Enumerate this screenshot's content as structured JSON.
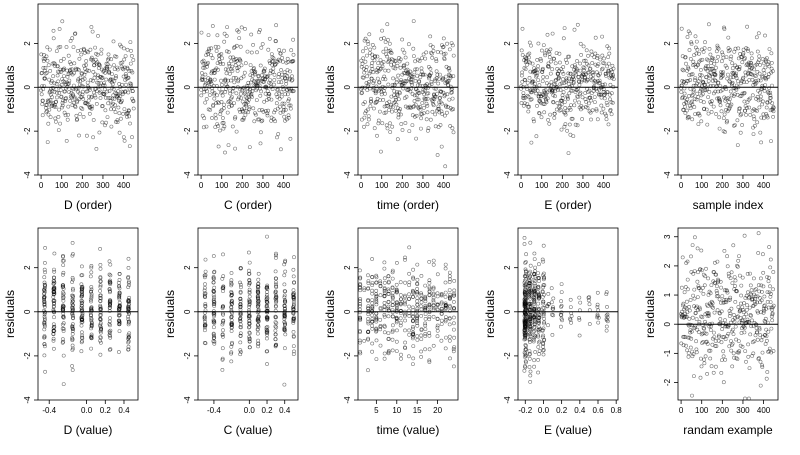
{
  "chart_data": [
    {
      "type": "scatter",
      "xlabel": "D (order)",
      "ylabel": "residuals",
      "xticks": [
        0,
        100,
        200,
        300,
        400
      ],
      "xlim": [
        -15,
        470
      ],
      "yticks": [
        -4,
        -2,
        0,
        2
      ],
      "ylim": [
        -4,
        3.8
      ],
      "hline": 0,
      "distribution": "order",
      "n": 450,
      "seed": 11
    },
    {
      "type": "scatter",
      "xlabel": "C (order)",
      "ylabel": "residuals",
      "xticks": [
        0,
        100,
        200,
        300,
        400
      ],
      "xlim": [
        -15,
        470
      ],
      "yticks": [
        -4,
        -2,
        0,
        2
      ],
      "ylim": [
        -4,
        3.8
      ],
      "hline": 0,
      "distribution": "order",
      "n": 450,
      "seed": 22
    },
    {
      "type": "scatter",
      "xlabel": "time (order)",
      "ylabel": "residuals",
      "xticks": [
        0,
        100,
        200,
        300,
        400
      ],
      "xlim": [
        -15,
        470
      ],
      "yticks": [
        -4,
        -2,
        0,
        2
      ],
      "ylim": [
        -4,
        3.8
      ],
      "hline": 0,
      "distribution": "order",
      "n": 450,
      "seed": 33
    },
    {
      "type": "scatter",
      "xlabel": "E (order)",
      "ylabel": "residuals",
      "xticks": [
        0,
        100,
        200,
        300,
        400
      ],
      "xlim": [
        -15,
        470
      ],
      "yticks": [
        -4,
        -2,
        0,
        2
      ],
      "ylim": [
        -4,
        3.8
      ],
      "hline": 0,
      "distribution": "order",
      "n": 450,
      "seed": 44
    },
    {
      "type": "scatter",
      "xlabel": "sample index",
      "ylabel": "residuals",
      "xticks": [
        0,
        100,
        200,
        300,
        400
      ],
      "xlim": [
        -15,
        470
      ],
      "yticks": [
        -4,
        -2,
        0,
        2
      ],
      "ylim": [
        -4,
        3.8
      ],
      "hline": 0,
      "distribution": "order",
      "n": 450,
      "seed": 55
    },
    {
      "type": "scatter",
      "xlabel": "D (value)",
      "ylabel": "residuals",
      "xticks": [
        -0.4,
        0.0,
        0.2,
        0.4
      ],
      "xtick_labels": [
        "-0.4",
        "0.0",
        "0.2",
        "0.4"
      ],
      "xlim": [
        -0.52,
        0.55
      ],
      "yticks": [
        -4,
        -2,
        0,
        2
      ],
      "ylim": [
        -4,
        3.8
      ],
      "hline": 0,
      "distribution": "levels",
      "levels": [
        -0.45,
        -0.35,
        -0.25,
        -0.15,
        -0.05,
        0.05,
        0.15,
        0.25,
        0.35,
        0.45
      ],
      "n": 450,
      "seed": 66
    },
    {
      "type": "scatter",
      "xlabel": "C (value)",
      "ylabel": "residuals",
      "xticks": [
        -0.4,
        0.0,
        0.2,
        0.4
      ],
      "xtick_labels": [
        "-0.4",
        "0.0",
        "0.2",
        "0.4"
      ],
      "xlim": [
        -0.58,
        0.55
      ],
      "yticks": [
        -4,
        -2,
        0,
        2
      ],
      "ylim": [
        -4,
        3.8
      ],
      "hline": 0,
      "distribution": "levels",
      "levels": [
        -0.5,
        -0.4,
        -0.3,
        -0.2,
        -0.1,
        0.0,
        0.1,
        0.2,
        0.3,
        0.4,
        0.5
      ],
      "n": 450,
      "seed": 77
    },
    {
      "type": "scatter",
      "xlabel": "time (value)",
      "ylabel": "residuals",
      "xticks": [
        5,
        10,
        15,
        20
      ],
      "xtick_labels": [
        "5",
        "10",
        "15",
        "20"
      ],
      "xlim": [
        0.5,
        25
      ],
      "yticks": [
        -4,
        -2,
        0,
        2
      ],
      "ylim": [
        -4,
        3.8
      ],
      "hline": 0,
      "distribution": "levels",
      "levels": [
        1,
        2,
        3,
        4,
        5,
        6,
        7,
        8,
        9,
        10,
        11,
        12,
        13,
        14,
        15,
        16,
        17,
        18,
        19,
        20,
        21,
        22,
        23,
        24
      ],
      "n": 450,
      "seed": 88
    },
    {
      "type": "scatter",
      "xlabel": "E (value)",
      "ylabel": "residuals",
      "xticks": [
        -0.2,
        0.0,
        0.2,
        0.4,
        0.6,
        0.8
      ],
      "xtick_labels": [
        "-0.2",
        "0.0",
        "0.2",
        "0.4",
        "0.6",
        "0.8"
      ],
      "xlim": [
        -0.28,
        0.82
      ],
      "yticks": [
        -4,
        -2,
        0,
        2
      ],
      "ylim": [
        -4,
        3.8
      ],
      "hline": 0,
      "distribution": "skewed",
      "levels": [
        -0.2,
        -0.15,
        -0.1,
        -0.05,
        0.0,
        0.05,
        0.1,
        0.2,
        0.3,
        0.4,
        0.5,
        0.6,
        0.7
      ],
      "n": 450,
      "seed": 99
    },
    {
      "type": "scatter",
      "xlabel": "randam example",
      "ylabel": "residuals",
      "xticks": [
        0,
        100,
        200,
        300,
        400
      ],
      "xlim": [
        -15,
        470
      ],
      "yticks": [
        -2,
        -1,
        0,
        1,
        2,
        3
      ],
      "ylim": [
        -2.6,
        3.3
      ],
      "hline": 0,
      "distribution": "order",
      "n": 450,
      "seed": 111
    }
  ]
}
